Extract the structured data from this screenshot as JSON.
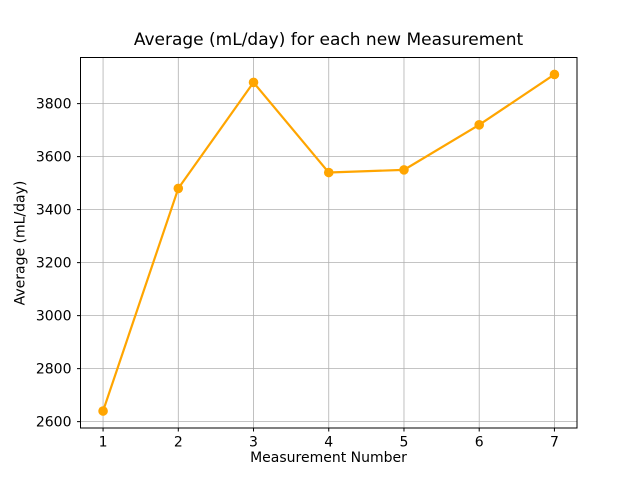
{
  "figure": {
    "background": "#ffffff",
    "text_color": "#000000"
  },
  "chart_data": {
    "type": "line",
    "title": "Average (mL/day) for each new Measurement",
    "xlabel": "Measurement Number",
    "ylabel": "Average (mL/day)",
    "x": [
      1,
      2,
      3,
      4,
      5,
      6,
      7
    ],
    "series": [
      {
        "name": "Average (mL/day)",
        "values": [
          2640,
          3480,
          3880,
          3540,
          3550,
          3720,
          3910
        ]
      }
    ],
    "xticks": [
      1,
      2,
      3,
      4,
      5,
      6,
      7
    ],
    "yticks": [
      2600,
      2800,
      3000,
      3200,
      3400,
      3600,
      3800
    ],
    "xlim": [
      0.7,
      7.3
    ],
    "ylim": [
      2576,
      3974
    ],
    "grid": true,
    "legend_position": "none",
    "line_color": "#FFA500",
    "marker": "circle",
    "grid_color": "#b0b0b0",
    "spine_color": "#000000",
    "tick_label_color": "#000000"
  }
}
